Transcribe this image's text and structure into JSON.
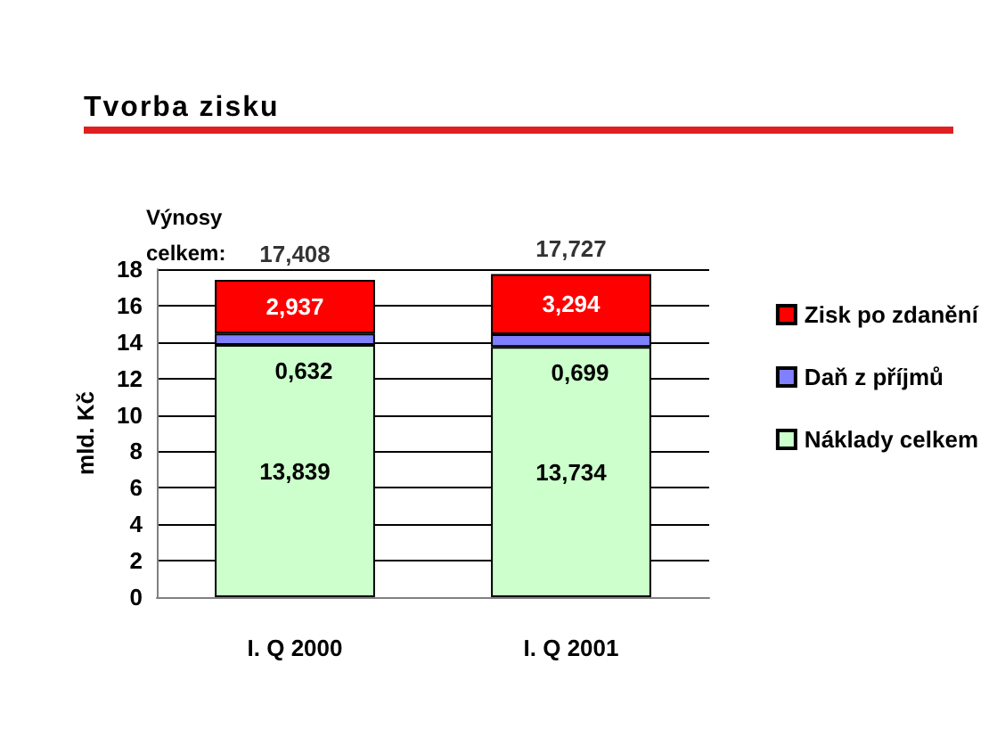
{
  "chart_data": {
    "type": "bar",
    "title": "Tvorba zisku",
    "ylabel": "mld. Kč",
    "categories": [
      "I. Q 2000",
      "I. Q 2001"
    ],
    "stacked": true,
    "series": [
      {
        "name": "Náklady celkem",
        "color": "#ccffcc",
        "values": [
          13.839,
          13.734
        ],
        "value_labels": [
          "13,839",
          "13,734"
        ]
      },
      {
        "name": "Daň z příjmů",
        "color": "#8080ff",
        "values": [
          0.632,
          0.699
        ],
        "value_labels": [
          "0,632",
          "0,699"
        ]
      },
      {
        "name": "Zisk po zdanění",
        "color": "#ff0000",
        "values": [
          2.937,
          3.294
        ],
        "value_labels": [
          "2,937",
          "3,294"
        ]
      }
    ],
    "totals": [
      "17,408",
      "17,727"
    ],
    "annotations": [
      "Výnosy celkem:"
    ],
    "ylim": [
      0,
      18
    ],
    "yticks": [
      0,
      2,
      4,
      6,
      8,
      10,
      12,
      14,
      16,
      18
    ],
    "grid": "y",
    "legend": "right"
  }
}
